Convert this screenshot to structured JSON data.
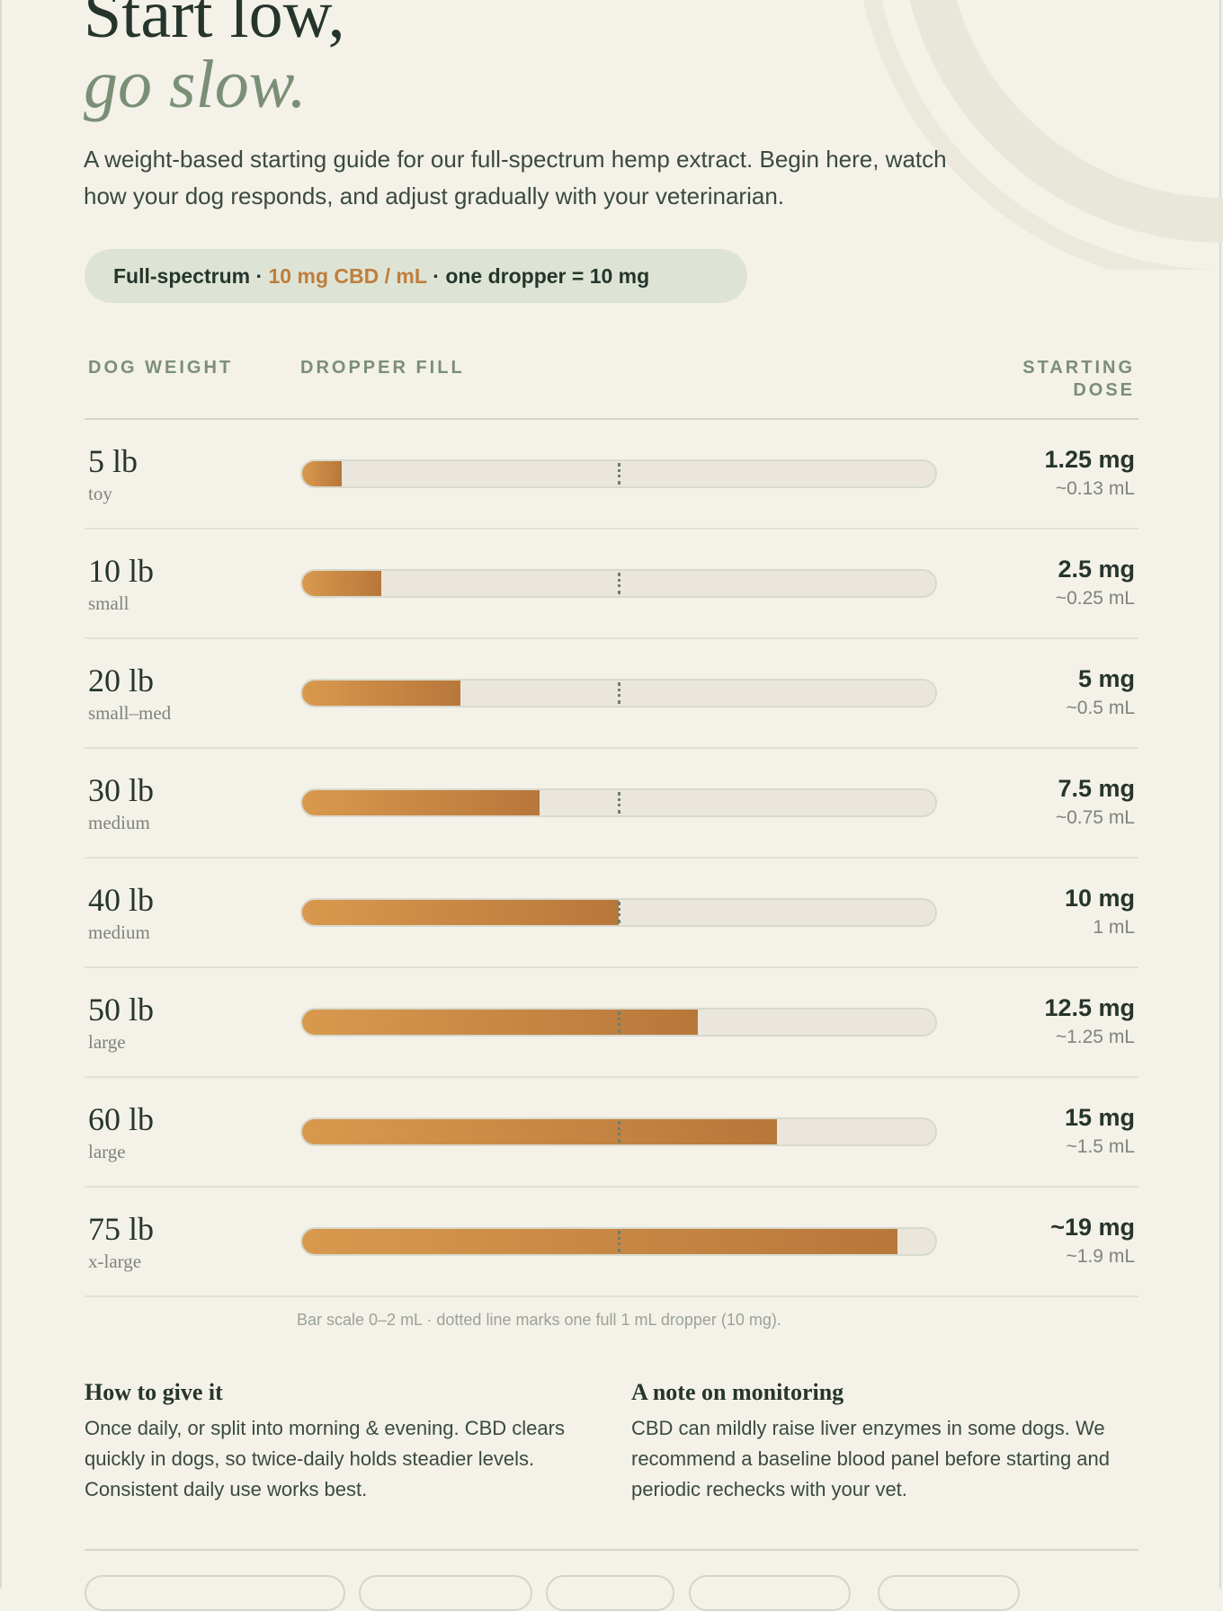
{
  "hero": {
    "title_line1": "Start low,",
    "title_line2": "go slow.",
    "intro": "A weight-based starting guide for our full-spectrum hemp extract. Begin here, watch how your dog responds, and adjust gradually with your veterinarian."
  },
  "product_pill": {
    "prefix": "Full-spectrum · ",
    "concentration": "10 mg CBD / mL",
    "suffix": " · one dropper = 10 mg"
  },
  "table": {
    "col_weight": "DOG WEIGHT",
    "col_fill": "DROPPER FILL",
    "col_dose": "STARTING DOSE",
    "scale_max_ml": 2,
    "dropper_ml": 1,
    "rows": [
      {
        "weight": "5 lb",
        "size": "toy",
        "dose": "1.25 mg",
        "ml_label": "~0.13 mL",
        "ml": 0.125
      },
      {
        "weight": "10 lb",
        "size": "small",
        "dose": "2.5 mg",
        "ml_label": "~0.25 mL",
        "ml": 0.25
      },
      {
        "weight": "20 lb",
        "size": "small–med",
        "dose": "5 mg",
        "ml_label": "~0.5 mL",
        "ml": 0.5
      },
      {
        "weight": "30 lb",
        "size": "medium",
        "dose": "7.5 mg",
        "ml_label": "~0.75 mL",
        "ml": 0.75
      },
      {
        "weight": "40 lb",
        "size": "medium",
        "dose": "10 mg",
        "ml_label": "1 mL",
        "ml": 1.0
      },
      {
        "weight": "50 lb",
        "size": "large",
        "dose": "12.5 mg",
        "ml_label": "~1.25 mL",
        "ml": 1.25
      },
      {
        "weight": "60 lb",
        "size": "large",
        "dose": "15 mg",
        "ml_label": "~1.5 mL",
        "ml": 1.5
      },
      {
        "weight": "75 lb",
        "size": "x-large",
        "dose": "~19 mg",
        "ml_label": "~1.9 mL",
        "ml": 1.88
      }
    ],
    "caption": "Bar scale 0–2 mL · dotted line marks one full 1 mL dropper (10 mg)."
  },
  "how_to_give": {
    "title": "How to give it",
    "body": "Once daily, or split into morning & evening. CBD clears quickly in dogs, so twice-daily holds steadier levels. Consistent daily use works best."
  },
  "monitoring": {
    "title": "A note on monitoring",
    "body": "CBD can mildly raise liver enzymes in some dogs. We recommend a baseline blood panel before starting and periodic rechecks with your vet."
  },
  "colors": {
    "accent": "#c07e3c",
    "sage": "#7a8f76",
    "ink": "#26352c",
    "background": "#f4f1e9"
  }
}
